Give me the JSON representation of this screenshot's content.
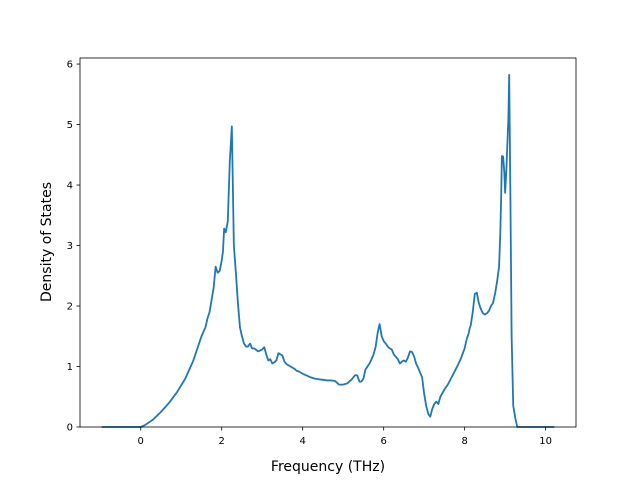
{
  "chart_data": {
    "type": "line",
    "title": "",
    "xlabel": "Frequency (THz)",
    "ylabel": "Density of States",
    "xlim": [
      -1.5,
      10.75
    ],
    "ylim": [
      0,
      6.1
    ],
    "xticks": [
      0,
      2,
      4,
      6,
      8,
      10
    ],
    "yticks": [
      0,
      1,
      2,
      3,
      4,
      5,
      6
    ],
    "grid": false,
    "series": [
      {
        "color": "#1f77b4",
        "x": [
          -0.95,
          -0.5,
          0,
          0.1,
          0.3,
          0.5,
          0.7,
          0.9,
          1.1,
          1.3,
          1.4,
          1.5,
          1.6,
          1.65,
          1.7,
          1.75,
          1.8,
          1.85,
          1.9,
          1.95,
          2.0,
          2.03,
          2.06,
          2.1,
          2.15,
          2.2,
          2.25,
          2.3,
          2.35,
          2.4,
          2.45,
          2.5,
          2.55,
          2.6,
          2.65,
          2.7,
          2.75,
          2.8,
          2.9,
          3.0,
          3.05,
          3.1,
          3.15,
          3.2,
          3.25,
          3.3,
          3.35,
          3.4,
          3.45,
          3.5,
          3.55,
          3.6,
          3.7,
          3.8,
          3.85,
          3.9,
          4.0,
          4.1,
          4.2,
          4.3,
          4.4,
          4.5,
          4.6,
          4.7,
          4.8,
          4.85,
          4.9,
          5.0,
          5.1,
          5.2,
          5.25,
          5.3,
          5.35,
          5.4,
          5.45,
          5.5,
          5.55,
          5.6,
          5.65,
          5.7,
          5.75,
          5.8,
          5.85,
          5.88,
          5.9,
          5.95,
          6.0,
          6.05,
          6.1,
          6.15,
          6.2,
          6.25,
          6.3,
          6.35,
          6.4,
          6.45,
          6.5,
          6.55,
          6.6,
          6.65,
          6.7,
          6.75,
          6.8,
          6.85,
          6.9,
          6.95,
          7.0,
          7.05,
          7.1,
          7.15,
          7.2,
          7.25,
          7.3,
          7.35,
          7.4,
          7.5,
          7.6,
          7.7,
          7.8,
          7.9,
          8.0,
          8.05,
          8.1,
          8.12,
          8.15,
          8.2,
          8.25,
          8.3,
          8.35,
          8.4,
          8.45,
          8.5,
          8.55,
          8.6,
          8.65,
          8.7,
          8.75,
          8.8,
          8.85,
          8.88,
          8.9,
          8.92,
          8.95,
          8.98,
          9.0,
          9.03,
          9.05,
          9.08,
          9.1,
          9.13,
          9.16,
          9.2,
          9.25,
          9.3,
          9.4,
          9.6,
          9.8,
          10.0,
          10.2
        ],
        "y": [
          0.0,
          0.0,
          0.0,
          0.03,
          0.12,
          0.25,
          0.4,
          0.58,
          0.8,
          1.1,
          1.3,
          1.5,
          1.65,
          1.8,
          1.9,
          2.1,
          2.3,
          2.65,
          2.55,
          2.58,
          2.75,
          2.9,
          3.28,
          3.22,
          3.4,
          4.4,
          4.97,
          3.0,
          2.55,
          2.05,
          1.65,
          1.5,
          1.38,
          1.33,
          1.33,
          1.38,
          1.3,
          1.3,
          1.25,
          1.28,
          1.32,
          1.2,
          1.1,
          1.12,
          1.05,
          1.07,
          1.1,
          1.22,
          1.2,
          1.18,
          1.08,
          1.04,
          1.0,
          0.96,
          0.93,
          0.92,
          0.88,
          0.85,
          0.82,
          0.8,
          0.79,
          0.78,
          0.77,
          0.77,
          0.76,
          0.73,
          0.7,
          0.7,
          0.72,
          0.78,
          0.82,
          0.86,
          0.85,
          0.75,
          0.75,
          0.8,
          0.95,
          1.0,
          1.05,
          1.12,
          1.2,
          1.32,
          1.55,
          1.65,
          1.7,
          1.5,
          1.42,
          1.38,
          1.33,
          1.3,
          1.28,
          1.2,
          1.16,
          1.12,
          1.05,
          1.08,
          1.1,
          1.08,
          1.15,
          1.25,
          1.24,
          1.17,
          1.05,
          0.98,
          0.9,
          0.82,
          0.55,
          0.35,
          0.22,
          0.17,
          0.3,
          0.38,
          0.42,
          0.38,
          0.5,
          0.62,
          0.72,
          0.85,
          0.98,
          1.12,
          1.3,
          1.45,
          1.55,
          1.62,
          1.68,
          1.9,
          2.2,
          2.22,
          2.05,
          1.95,
          1.88,
          1.86,
          1.88,
          1.92,
          2.0,
          2.05,
          2.2,
          2.4,
          2.65,
          3.2,
          3.75,
          4.48,
          4.47,
          4.2,
          3.87,
          4.25,
          4.6,
          5.1,
          5.82,
          3.8,
          1.5,
          0.35,
          0.15,
          0.0,
          0.0,
          0.0,
          0.0,
          0.0,
          0.0
        ]
      }
    ]
  }
}
